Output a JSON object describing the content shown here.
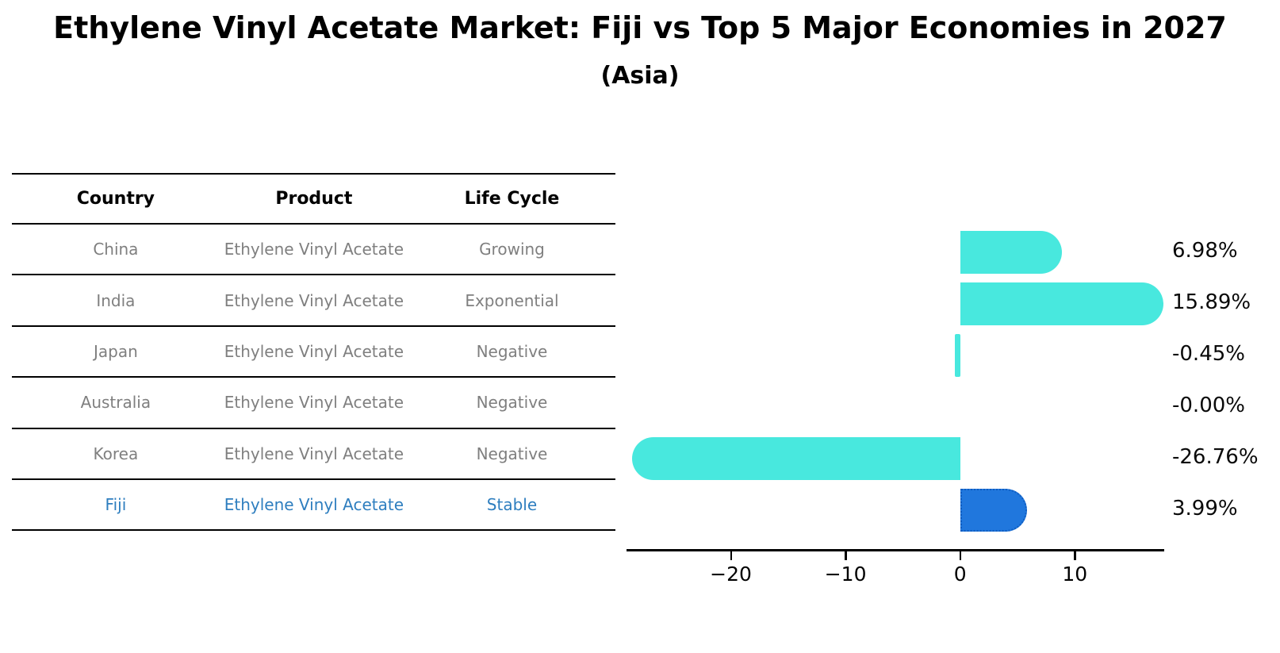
{
  "title": "Ethylene Vinyl Acetate Market: Fiji vs Top 5 Major Economies in 2027",
  "subtitle": "(Asia)",
  "table": {
    "headers": [
      "Country",
      "Product",
      "Life Cycle"
    ],
    "rows": [
      [
        "China",
        "Ethylene Vinyl Acetate",
        "Growing"
      ],
      [
        "India",
        "Ethylene Vinyl Acetate",
        "Exponential"
      ],
      [
        "Japan",
        "Ethylene Vinyl Acetate",
        "Negative"
      ],
      [
        "Australia",
        "Ethylene Vinyl Acetate",
        "Negative"
      ],
      [
        "Korea",
        "Ethylene Vinyl Acetate",
        "Negative"
      ],
      [
        "Fiji",
        "Ethylene Vinyl Acetate",
        "Stable"
      ]
    ],
    "highlight_row": 5
  },
  "chart_data": {
    "type": "bar",
    "orientation": "horizontal",
    "title": "Ethylene Vinyl Acetate Market: Fiji vs Top 5 Major Economies in 2027",
    "subtitle": "(Asia)",
    "categories": [
      "China",
      "India",
      "Japan",
      "Australia",
      "Korea",
      "Fiji"
    ],
    "values": [
      6.98,
      15.89,
      -0.45,
      -0.0,
      -26.76,
      3.99
    ],
    "value_labels": [
      "6.98%",
      "15.89%",
      "-0.45%",
      "-0.00%",
      "-26.76%",
      "3.99%"
    ],
    "x_ticks": [
      -20,
      -10,
      0,
      10
    ],
    "x_tick_labels": [
      "−20",
      "−10",
      "0",
      "10"
    ],
    "xlim": [
      -29.1,
      17.8
    ],
    "grid": false,
    "legend": false,
    "highlight_index": 5
  },
  "colors": {
    "bar": "#48e8de",
    "highlight_bar": "#2077dd",
    "highlight_bar_border": "#0f5cc0",
    "table_text": "#7f7f7f",
    "highlight_text": "#2e7ebf",
    "header_text": "#000000",
    "axis": "#000000"
  }
}
